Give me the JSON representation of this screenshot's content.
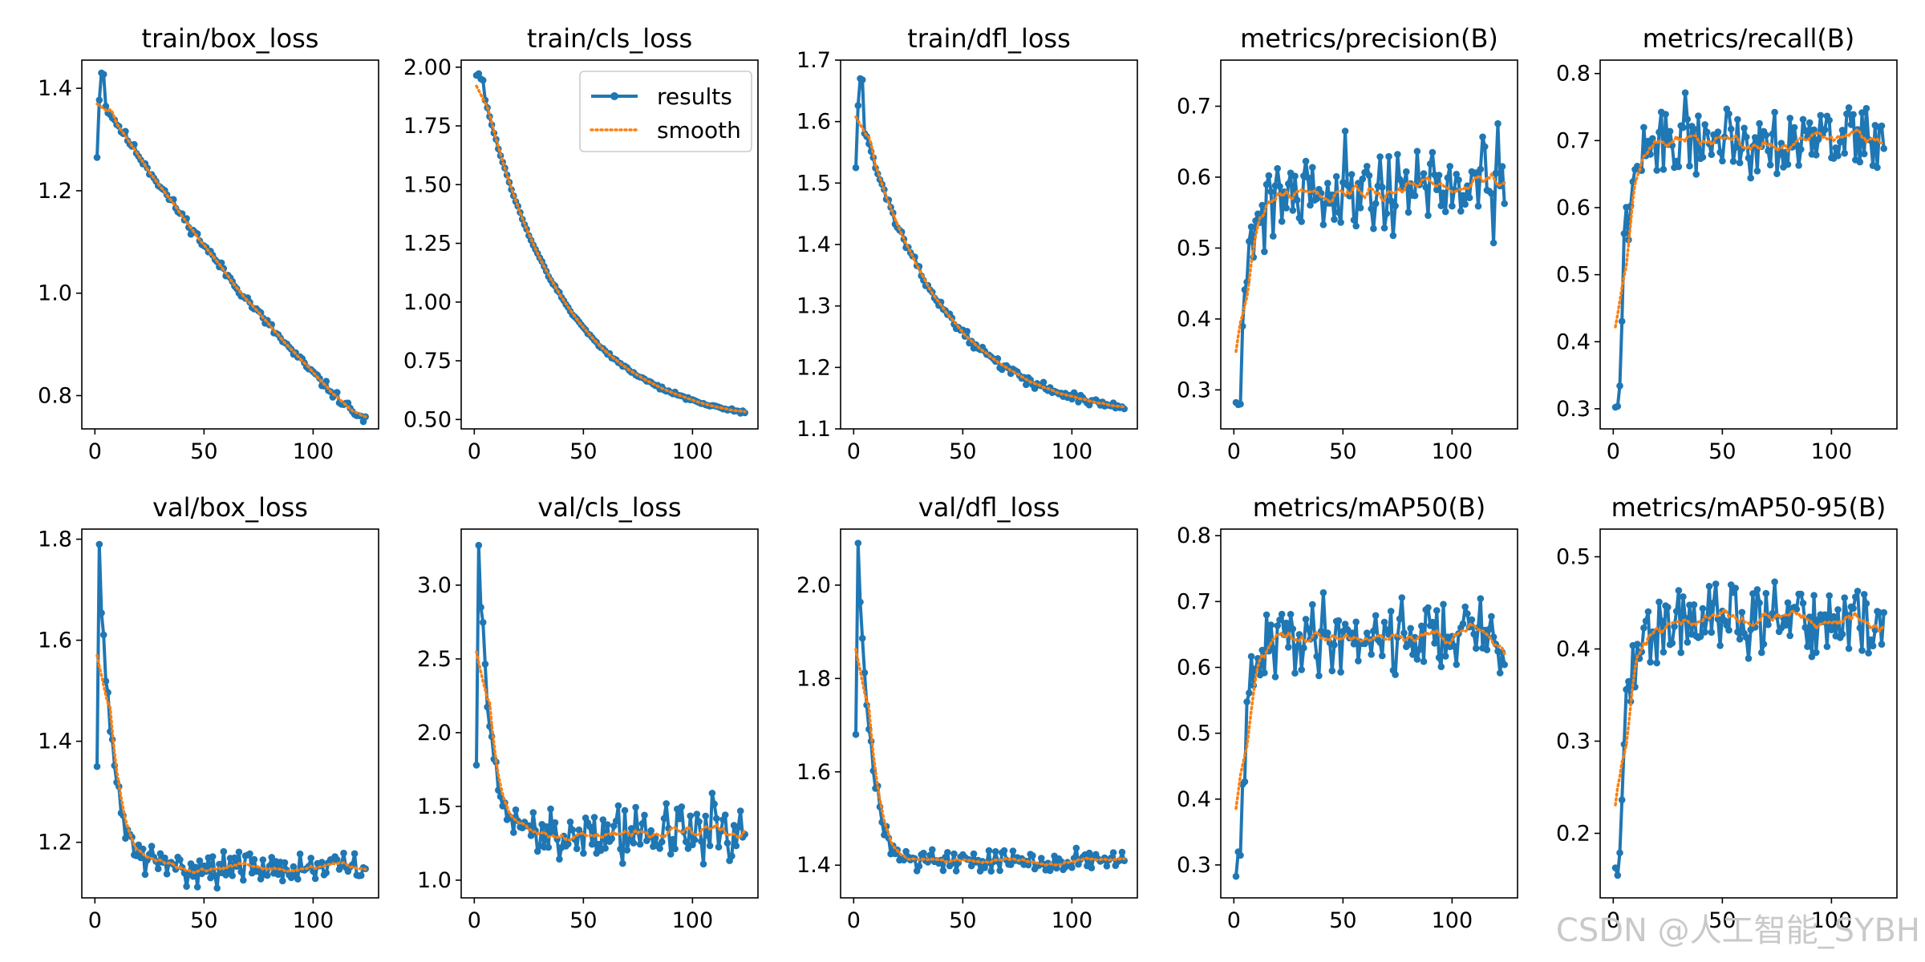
{
  "colors": {
    "results": "#1f77b4",
    "smooth": "#ff7f0e",
    "axis": "#000000"
  },
  "legend": {
    "results_label": "results",
    "smooth_label": "smooth",
    "placement": "top-right of train/cls_loss"
  },
  "watermark": "CSDN @人工智能_SYBH",
  "chart_data": [
    {
      "type": "line",
      "title": "train/box_loss",
      "xlim": [
        -6,
        130
      ],
      "ylim": [
        0.735,
        1.455
      ],
      "xticks": [
        0,
        50,
        100
      ],
      "xtick_labels": [
        "0",
        "50",
        "100"
      ],
      "yticks": [
        0.8,
        1.0,
        1.2,
        1.4
      ],
      "ytick_labels": [
        "0.8",
        "1.0",
        "1.2",
        "1.4"
      ],
      "series": [
        {
          "name": "results",
          "kind": "trend",
          "start": 1.37,
          "end": 0.75,
          "first": 1.265,
          "peak": 1.43,
          "shape": "decay",
          "noise": 0.008,
          "seed": 11
        }
      ]
    },
    {
      "type": "line",
      "title": "train/cls_loss",
      "xlim": [
        -6,
        130
      ],
      "ylim": [
        0.46,
        2.03
      ],
      "xticks": [
        0,
        50,
        100
      ],
      "xtick_labels": [
        "0",
        "50",
        "100"
      ],
      "yticks": [
        0.5,
        0.75,
        1.0,
        1.25,
        1.5,
        1.75,
        2.0
      ],
      "ytick_labels": [
        "0.50",
        "0.75",
        "1.00",
        "1.25",
        "1.50",
        "1.75",
        "2.00"
      ],
      "legend": true,
      "series": [
        {
          "name": "results",
          "kind": "trend",
          "start": 1.9,
          "end": 0.53,
          "first": 1.965,
          "peak": 1.95,
          "shape": "exp",
          "noise": 0.006,
          "seed": 12
        }
      ]
    },
    {
      "type": "line",
      "title": "train/dfl_loss",
      "xlim": [
        -6,
        130
      ],
      "ylim": [
        1.1,
        1.7
      ],
      "xticks": [
        0,
        50,
        100
      ],
      "xtick_labels": [
        "0",
        "50",
        "100"
      ],
      "yticks": [
        1.1,
        1.2,
        1.3,
        1.4,
        1.5,
        1.6,
        1.7
      ],
      "ytick_labels": [
        "1.1",
        "1.2",
        "1.3",
        "1.4",
        "1.5",
        "1.6",
        "1.7"
      ],
      "series": [
        {
          "name": "results",
          "kind": "trend",
          "start": 1.6,
          "end": 1.135,
          "first": 1.525,
          "peak": 1.67,
          "shape": "exp",
          "noise": 0.006,
          "seed": 13
        }
      ]
    },
    {
      "type": "line",
      "title": "metrics/precision(B)",
      "xlim": [
        -6,
        130
      ],
      "ylim": [
        0.245,
        0.765
      ],
      "xticks": [
        0,
        50,
        100
      ],
      "xtick_labels": [
        "0",
        "50",
        "100"
      ],
      "yticks": [
        0.3,
        0.4,
        0.5,
        0.6,
        0.7
      ],
      "ytick_labels": [
        "0.3",
        "0.4",
        "0.5",
        "0.6",
        "0.7"
      ],
      "series": [
        {
          "name": "results",
          "kind": "rise",
          "start": 0.27,
          "level": 0.585,
          "rate": 0.2,
          "noise": 0.055,
          "seed": 21
        }
      ]
    },
    {
      "type": "line",
      "title": "metrics/recall(B)",
      "xlim": [
        -6,
        130
      ],
      "ylim": [
        0.27,
        0.82
      ],
      "xticks": [
        0,
        50,
        100
      ],
      "xtick_labels": [
        "0",
        "50",
        "100"
      ],
      "yticks": [
        0.3,
        0.4,
        0.5,
        0.6,
        0.7,
        0.8
      ],
      "ytick_labels": [
        "0.3",
        "0.4",
        "0.5",
        "0.6",
        "0.7",
        "0.8"
      ],
      "series": [
        {
          "name": "results",
          "kind": "rise",
          "start": 0.29,
          "level": 0.705,
          "rate": 0.2,
          "noise": 0.045,
          "seed": 22
        }
      ]
    },
    {
      "type": "line",
      "title": "val/box_loss",
      "xlim": [
        -6,
        130
      ],
      "ylim": [
        1.09,
        1.82
      ],
      "xticks": [
        0,
        50,
        100
      ],
      "xtick_labels": [
        "0",
        "50",
        "100"
      ],
      "yticks": [
        1.2,
        1.4,
        1.6,
        1.8
      ],
      "ytick_labels": [
        "1.2",
        "1.4",
        "1.6",
        "1.8"
      ],
      "series": [
        {
          "name": "results",
          "kind": "spike",
          "first": 1.35,
          "peak": 1.79,
          "base": 1.15,
          "rate": 0.17,
          "noise": 0.028,
          "seed": 31
        }
      ]
    },
    {
      "type": "line",
      "title": "val/cls_loss",
      "xlim": [
        -6,
        130
      ],
      "ylim": [
        0.88,
        3.38
      ],
      "xticks": [
        0,
        50,
        100
      ],
      "xtick_labels": [
        "0",
        "50",
        "100"
      ],
      "yticks": [
        1.0,
        1.5,
        2.0,
        2.5,
        3.0
      ],
      "ytick_labels": [
        "1.0",
        "1.5",
        "2.0",
        "2.5",
        "3.0"
      ],
      "series": [
        {
          "name": "results",
          "kind": "spike",
          "first": 1.78,
          "peak": 3.27,
          "base": 1.32,
          "rate": 0.2,
          "noise": 0.17,
          "seed": 32
        }
      ]
    },
    {
      "type": "line",
      "title": "val/dfl_loss",
      "xlim": [
        -6,
        130
      ],
      "ylim": [
        1.33,
        2.12
      ],
      "xticks": [
        0,
        50,
        100
      ],
      "xtick_labels": [
        "0",
        "50",
        "100"
      ],
      "yticks": [
        1.4,
        1.6,
        1.8,
        2.0
      ],
      "ytick_labels": [
        "1.4",
        "1.6",
        "1.8",
        "2.0"
      ],
      "series": [
        {
          "name": "results",
          "kind": "spike",
          "first": 1.68,
          "peak": 2.09,
          "base": 1.41,
          "rate": 0.18,
          "noise": 0.022,
          "seed": 33
        }
      ]
    },
    {
      "type": "line",
      "title": "metrics/mAP50(B)",
      "xlim": [
        -6,
        130
      ],
      "ylim": [
        0.25,
        0.81
      ],
      "xticks": [
        0,
        50,
        100
      ],
      "xtick_labels": [
        "0",
        "50",
        "100"
      ],
      "yticks": [
        0.3,
        0.4,
        0.5,
        0.6,
        0.7,
        0.8
      ],
      "ytick_labels": [
        "0.3",
        "0.4",
        "0.5",
        "0.6",
        "0.7",
        "0.8"
      ],
      "series": [
        {
          "name": "results",
          "kind": "rise",
          "start": 0.27,
          "level": 0.65,
          "rate": 0.2,
          "noise": 0.05,
          "seed": 41
        }
      ]
    },
    {
      "type": "line",
      "title": "metrics/mAP50-95(B)",
      "xlim": [
        -6,
        130
      ],
      "ylim": [
        0.13,
        0.53
      ],
      "xticks": [
        0,
        50,
        100
      ],
      "xtick_labels": [
        "0",
        "50",
        "100"
      ],
      "yticks": [
        0.2,
        0.3,
        0.4,
        0.5
      ],
      "ytick_labels": [
        "0.2",
        "0.3",
        "0.4",
        "0.5"
      ],
      "series": [
        {
          "name": "results",
          "kind": "rise",
          "start": 0.15,
          "level": 0.43,
          "rate": 0.19,
          "noise": 0.035,
          "seed": 42
        }
      ]
    }
  ]
}
